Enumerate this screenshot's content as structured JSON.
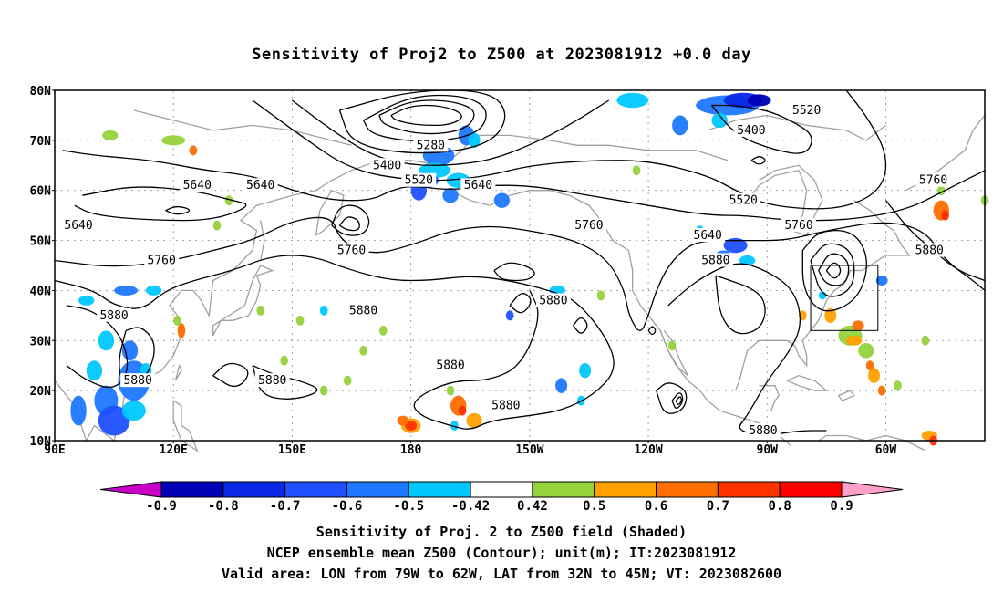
{
  "title": "Sensitivity of Proj2 to Z500 at 2023081912 +0.0 day",
  "map": {
    "lat_labels": [
      "80N",
      "70N",
      "60N",
      "50N",
      "40N",
      "30N",
      "20N",
      "10N"
    ],
    "lon_labels": [
      "90E",
      "120E",
      "150E",
      "180",
      "150W",
      "120W",
      "90W",
      "60W"
    ],
    "lat_range": [
      10,
      80
    ],
    "lon_range_east": [
      90,
      325
    ],
    "contour_labels": [
      {
        "text": "5280",
        "lon": 185,
        "lat": 69
      },
      {
        "text": "5400",
        "lon": 174,
        "lat": 65
      },
      {
        "text": "5520",
        "lon": 182,
        "lat": 62
      },
      {
        "text": "5640",
        "lon": 197,
        "lat": 61
      },
      {
        "text": "5640",
        "lon": 126,
        "lat": 61
      },
      {
        "text": "5640",
        "lon": 142,
        "lat": 61
      },
      {
        "text": "5640",
        "lon": 96,
        "lat": 53
      },
      {
        "text": "5760",
        "lon": 117,
        "lat": 46
      },
      {
        "text": "5760",
        "lon": 165,
        "lat": 48
      },
      {
        "text": "5760",
        "lon": 225,
        "lat": 53
      },
      {
        "text": "5640",
        "lon": 255,
        "lat": 51
      },
      {
        "text": "5520",
        "lon": 264,
        "lat": 58
      },
      {
        "text": "5400",
        "lon": 266,
        "lat": 72
      },
      {
        "text": "5520",
        "lon": 280,
        "lat": 76
      },
      {
        "text": "5760",
        "lon": 278,
        "lat": 53
      },
      {
        "text": "5760",
        "lon": 312,
        "lat": 62
      },
      {
        "text": "5880",
        "lon": 311,
        "lat": 48
      },
      {
        "text": "5880",
        "lon": 257,
        "lat": 46
      },
      {
        "text": "5880",
        "lon": 216,
        "lat": 38
      },
      {
        "text": "5880",
        "lon": 168,
        "lat": 36
      },
      {
        "text": "5880",
        "lon": 105,
        "lat": 35
      },
      {
        "text": "5880",
        "lon": 111,
        "lat": 22
      },
      {
        "text": "5880",
        "lon": 145,
        "lat": 22
      },
      {
        "text": "5880",
        "lon": 190,
        "lat": 25
      },
      {
        "text": "5880",
        "lon": 204,
        "lat": 17
      },
      {
        "text": "5880",
        "lon": 269,
        "lat": 12
      }
    ],
    "valid_box": {
      "lon_w": 79,
      "lon_e": 62,
      "lat_s": 32,
      "lat_n": 45
    },
    "colors": {
      "frame": "#000000",
      "contour": "#000000",
      "coast": "#a0a0a0",
      "grid": "#9a9a9a"
    }
  },
  "colorbar": {
    "labels": [
      "-0.9",
      "-0.8",
      "-0.7",
      "-0.6",
      "-0.5",
      "-0.42",
      "0.42",
      "0.5",
      "0.6",
      "0.7",
      "0.8",
      "0.9"
    ],
    "colors": [
      "#c800c8",
      "#0000b4",
      "#0a28e6",
      "#1e50ff",
      "#1e78ff",
      "#00c8ff",
      "#ffffff",
      "#96d23c",
      "#ffa000",
      "#ff6e00",
      "#ff3200",
      "#ff0000",
      "#ffa0c8"
    ]
  },
  "caption": {
    "line1": "Sensitivity of Proj. 2 to Z500 field (Shaded)",
    "line2": "NCEP ensemble mean Z500 (Contour); unit(m); IT:2023081912",
    "line3": "Valid area: LON from 79W to 62W, LAT from 32N to 45N; VT: 2023082600"
  }
}
